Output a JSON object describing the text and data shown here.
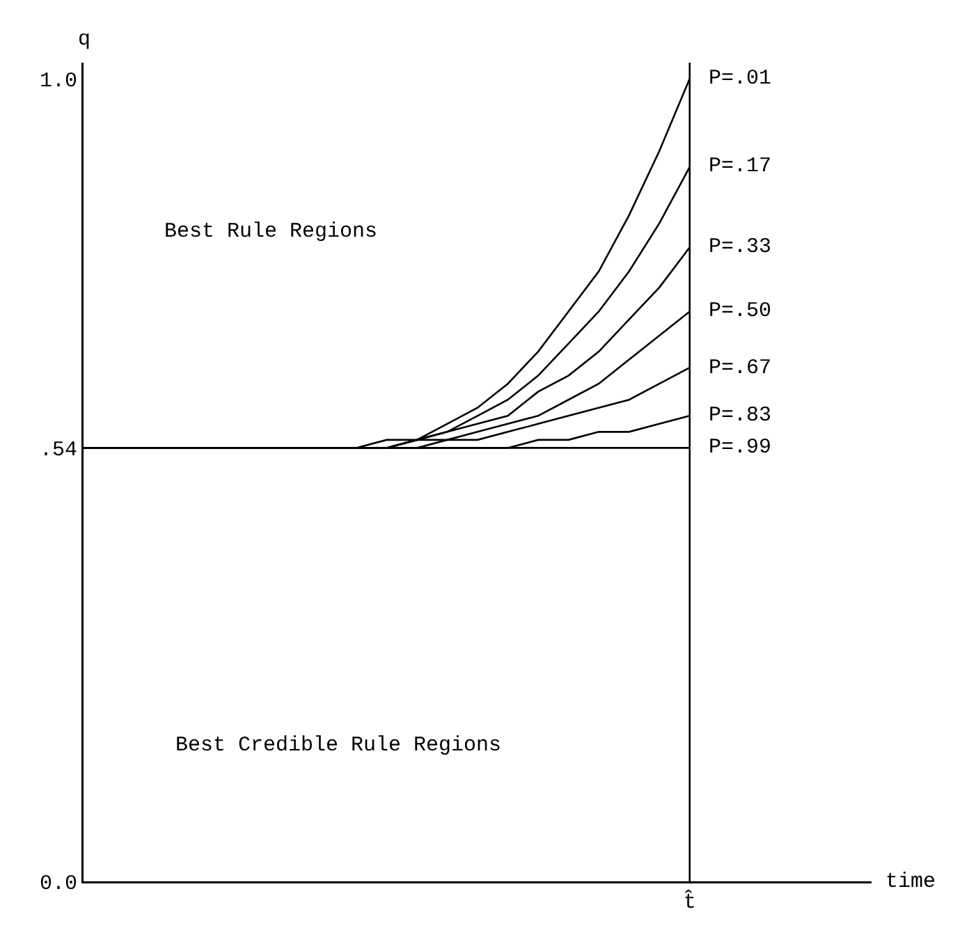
{
  "chart_data": {
    "type": "line",
    "ylabel": "q",
    "categories": [
      null,
      null,
      null,
      null,
      null,
      null,
      null,
      null,
      null,
      null,
      null,
      null,
      null,
      null,
      null,
      null,
      null,
      null,
      null,
      null,
      null
    ],
    "ylim": [
      0,
      1.02
    ],
    "yticks": [
      {
        "value": 0,
        "label": "0.0"
      },
      {
        "value": 0.54,
        "label": ".54"
      },
      {
        "value": 1,
        "label": "1.0"
      }
    ],
    "series": [
      {
        "name": "P=.01",
        "color": "#000000",
        "values": [
          0.54,
          0.54,
          0.54,
          0.54,
          0.54,
          0.54,
          0.54,
          0.54,
          0.54,
          0.54,
          0.55,
          0.55,
          0.57,
          0.59,
          0.62,
          0.66,
          0.71,
          0.76,
          0.83,
          0.91,
          1.0
        ]
      },
      {
        "name": "P=.17",
        "color": "#000000",
        "values": [
          0.54,
          0.54,
          0.54,
          0.54,
          0.54,
          0.54,
          0.54,
          0.54,
          0.54,
          0.54,
          0.54,
          0.55,
          0.56,
          0.58,
          0.6,
          0.63,
          0.67,
          0.71,
          0.76,
          0.82,
          0.89
        ]
      },
      {
        "name": "P=.33",
        "color": "#000000",
        "values": [
          0.54,
          0.54,
          0.54,
          0.54,
          0.54,
          0.54,
          0.54,
          0.54,
          0.54,
          0.54,
          0.54,
          0.55,
          0.56,
          0.57,
          0.58,
          0.61,
          0.63,
          0.66,
          0.7,
          0.74,
          0.79
        ]
      },
      {
        "name": "P=.50",
        "color": "#000000",
        "values": [
          0.54,
          0.54,
          0.54,
          0.54,
          0.54,
          0.54,
          0.54,
          0.54,
          0.54,
          0.54,
          0.54,
          0.55,
          0.55,
          0.56,
          0.57,
          0.58,
          0.6,
          0.62,
          0.65,
          0.68,
          0.71
        ]
      },
      {
        "name": "P=.67",
        "color": "#000000",
        "values": [
          0.54,
          0.54,
          0.54,
          0.54,
          0.54,
          0.54,
          0.54,
          0.54,
          0.54,
          0.54,
          0.54,
          0.54,
          0.55,
          0.55,
          0.56,
          0.57,
          0.58,
          0.59,
          0.6,
          0.62,
          0.64
        ]
      },
      {
        "name": "P=.83",
        "color": "#000000",
        "values": [
          0.54,
          0.54,
          0.54,
          0.54,
          0.54,
          0.54,
          0.54,
          0.54,
          0.54,
          0.54,
          0.54,
          0.54,
          0.54,
          0.54,
          0.54,
          0.55,
          0.55,
          0.56,
          0.56,
          0.57,
          0.58
        ]
      },
      {
        "name": "P=.99",
        "color": "#000000",
        "values": [
          0.54,
          0.54,
          0.54,
          0.54,
          0.54,
          0.54,
          0.54,
          0.54,
          0.54,
          0.54,
          0.54,
          0.54,
          0.54,
          0.54,
          0.54,
          0.54,
          0.54,
          0.54,
          0.54,
          0.54,
          0.54
        ]
      }
    ],
    "ref_lines": [
      {
        "axis": "x",
        "label": "t̂",
        "color": "#000000"
      }
    ],
    "annotations": [
      "Best Rule Regions",
      "Best Credible Rule Regions",
      "time"
    ],
    "legend": false,
    "grid": false,
    "marker": "none",
    "line_style": "solid"
  }
}
